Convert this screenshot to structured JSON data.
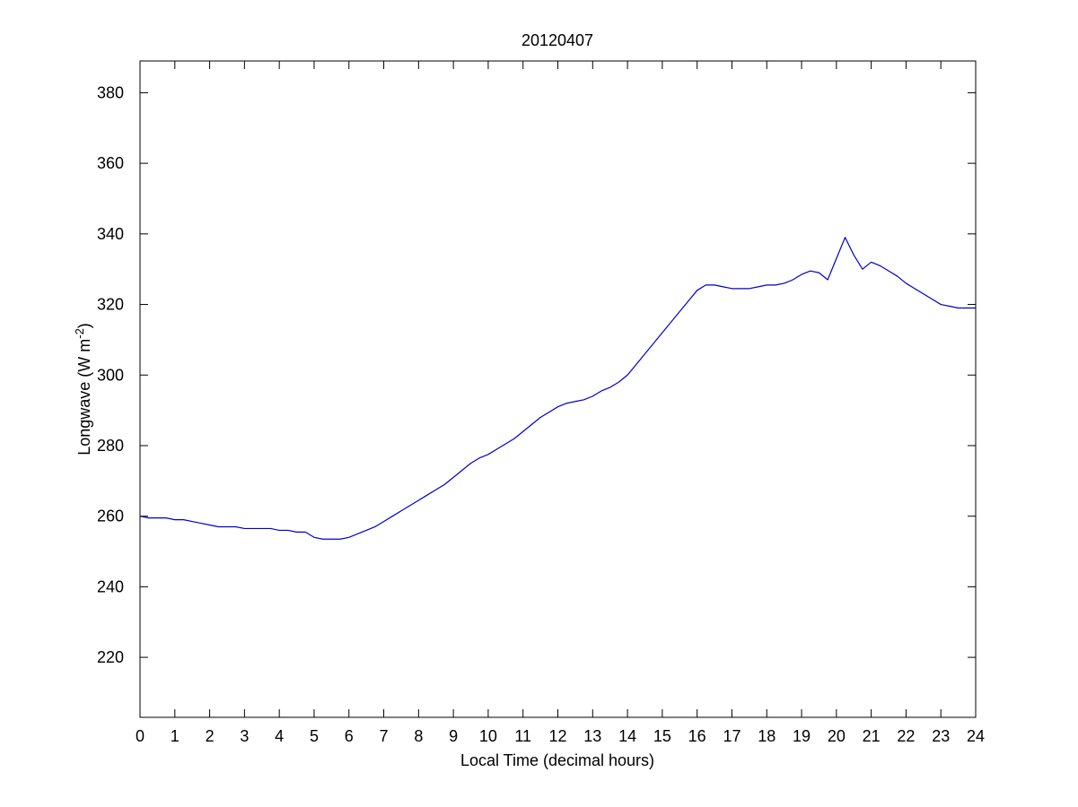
{
  "chart_data": {
    "type": "line",
    "title": "20120407",
    "xlabel": "Local Time (decimal hours)",
    "ylabel_base": "Longwave (W m",
    "ylabel_exponent": "-2",
    "ylabel_close": ")",
    "xlim": [
      0,
      24
    ],
    "ylim": [
      203,
      389
    ],
    "xticks": [
      0,
      1,
      2,
      3,
      4,
      5,
      6,
      7,
      8,
      9,
      10,
      11,
      12,
      13,
      14,
      15,
      16,
      17,
      18,
      19,
      20,
      21,
      22,
      23,
      24
    ],
    "yticks": [
      220,
      240,
      260,
      280,
      300,
      320,
      340,
      360,
      380
    ],
    "grid": false,
    "line_color": "#0000cc",
    "series": [
      {
        "x": [
          0,
          0.25,
          0.5,
          0.75,
          1,
          1.25,
          1.5,
          1.75,
          2,
          2.25,
          2.5,
          2.75,
          3,
          3.25,
          3.5,
          3.75,
          4,
          4.25,
          4.5,
          4.75,
          5,
          5.25,
          5.5,
          5.75,
          6,
          6.25,
          6.5,
          6.75,
          7,
          7.25,
          7.5,
          7.75,
          8,
          8.25,
          8.5,
          8.75,
          9,
          9.25,
          9.5,
          9.75,
          10,
          10.25,
          10.5,
          10.75,
          11,
          11.25,
          11.5,
          11.75,
          12,
          12.25,
          12.5,
          12.75,
          13,
          13.25,
          13.5,
          13.75,
          14,
          14.25,
          14.5,
          14.75,
          15,
          15.25,
          15.5,
          15.75,
          16,
          16.25,
          16.5,
          16.75,
          17,
          17.25,
          17.5,
          17.75,
          18,
          18.25,
          18.5,
          18.75,
          19,
          19.25,
          19.5,
          19.75,
          20,
          20.25,
          20.5,
          20.75,
          21,
          21.25,
          21.5,
          21.75,
          22,
          22.25,
          22.5,
          22.75,
          23,
          23.25,
          23.5,
          23.75,
          24
        ],
        "values": [
          260,
          259.5,
          259.5,
          259.5,
          259,
          259,
          258.5,
          258,
          257.5,
          257,
          257,
          257,
          256.5,
          256.5,
          256.5,
          256.5,
          256,
          256,
          255.5,
          255.5,
          254,
          253.5,
          253.5,
          253.5,
          254,
          255,
          256,
          257,
          258.5,
          260,
          261.5,
          263,
          264.5,
          266,
          267.5,
          269,
          271,
          273,
          275,
          276.5,
          277.5,
          279,
          280.5,
          282,
          284,
          286,
          288,
          289.5,
          291,
          292,
          292.5,
          293,
          294,
          295.5,
          296.5,
          298,
          300,
          303,
          306,
          309,
          312,
          315,
          318,
          321,
          324,
          325.5,
          325.5,
          325,
          324.5,
          324.5,
          324.5,
          325,
          325.5,
          325.5,
          326,
          327,
          328.5,
          329.5,
          329,
          327,
          333,
          339,
          334,
          330,
          332,
          331,
          329.5,
          328,
          326,
          324.5,
          323,
          321.5,
          320,
          319.5,
          319,
          319,
          319
        ]
      }
    ]
  }
}
